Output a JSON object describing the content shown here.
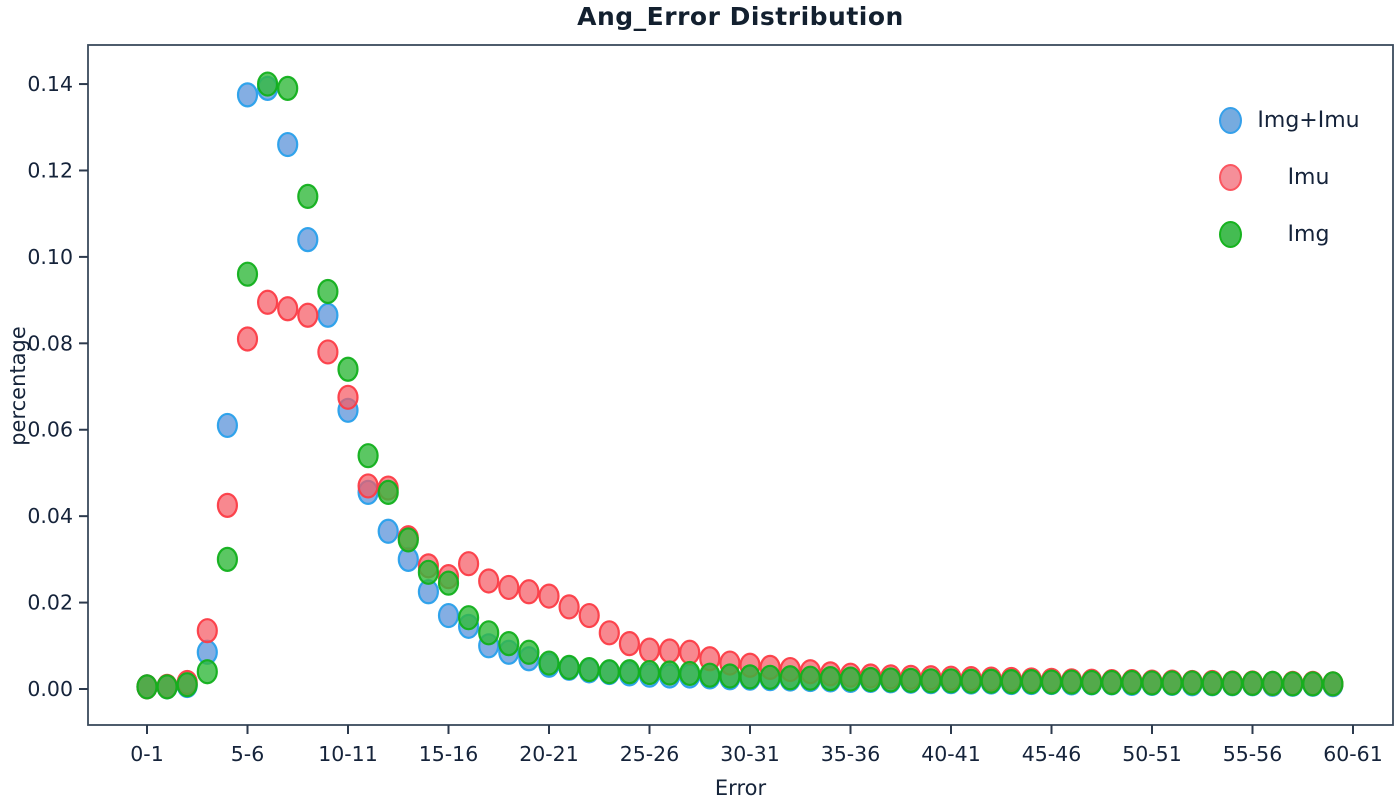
{
  "figure": {
    "title": "Ang_Error Distribution",
    "xlabel": "Error",
    "ylabel": "percentage"
  },
  "legend": {
    "position": "upper right",
    "items": [
      {
        "label": "Img+Imu",
        "fill": "#76abdf",
        "edge": "#35a0ea"
      },
      {
        "label": "Imu",
        "fill": "#f58f99",
        "edge": "#fb5660"
      },
      {
        "label": "Img",
        "fill": "#44bc52",
        "edge": "#16b31e"
      }
    ]
  },
  "chart_data": {
    "type": "scatter",
    "title": "Ang_Error Distribution",
    "xlabel": "Error",
    "ylabel": "percentage",
    "grid": false,
    "legend_position": "upper right",
    "ylim": [
      -0.0083,
      0.149
    ],
    "y_ticks": [
      0.0,
      0.02,
      0.04,
      0.06,
      0.08,
      0.1,
      0.12,
      0.14
    ],
    "x_tick_bins": [
      0,
      5,
      10,
      15,
      20,
      25,
      30,
      35,
      40,
      45,
      50,
      55,
      60
    ],
    "x_tick_labels": [
      "0-1",
      "5-6",
      "10-11",
      "15-16",
      "20-21",
      "25-26",
      "30-31",
      "35-36",
      "40-41",
      "45-46",
      "50-51",
      "55-56",
      "60-61"
    ],
    "categories": [
      "0-1",
      "1-2",
      "2-3",
      "3-4",
      "4-5",
      "5-6",
      "6-7",
      "7-8",
      "8-9",
      "9-10",
      "10-11",
      "11-12",
      "12-13",
      "13-14",
      "14-15",
      "15-16",
      "16-17",
      "17-18",
      "18-19",
      "19-20",
      "20-21",
      "21-22",
      "22-23",
      "23-24",
      "24-25",
      "25-26",
      "26-27",
      "27-28",
      "28-29",
      "29-30",
      "30-31",
      "31-32",
      "32-33",
      "33-34",
      "34-35",
      "35-36",
      "36-37",
      "37-38",
      "38-39",
      "39-40",
      "40-41",
      "41-42",
      "42-43",
      "43-44",
      "44-45",
      "45-46",
      "46-47",
      "47-48",
      "48-49",
      "49-50",
      "50-51",
      "51-52",
      "52-53",
      "53-54",
      "54-55",
      "55-56",
      "56-57",
      "57-58",
      "58-59",
      "59-60"
    ],
    "series": [
      {
        "name": "Img+Imu",
        "fill": "rgba(80,140,215,0.70)",
        "edge": "rgba(40,160,235,0.95)",
        "values": [
          0.0005,
          0.0005,
          0.0008,
          0.0085,
          0.061,
          0.1375,
          0.139,
          0.126,
          0.104,
          0.0865,
          0.0645,
          0.0455,
          0.0365,
          0.03,
          0.0225,
          0.017,
          0.0145,
          0.01,
          0.0085,
          0.007,
          0.0055,
          0.0048,
          0.0042,
          0.0038,
          0.0035,
          0.0032,
          0.003,
          0.003,
          0.0028,
          0.0026,
          0.0025,
          0.0024,
          0.0023,
          0.0022,
          0.0021,
          0.002,
          0.002,
          0.0019,
          0.0018,
          0.0017,
          0.0017,
          0.0016,
          0.0016,
          0.0015,
          0.0015,
          0.0015,
          0.0014,
          0.0014,
          0.0014,
          0.0013,
          0.0013,
          0.0013,
          0.0012,
          0.0012,
          0.0012,
          0.0012,
          0.0011,
          0.0011,
          0.0011,
          0.001
        ]
      },
      {
        "name": "Imu",
        "fill": "rgba(245,90,100,0.72)",
        "edge": "rgba(252,60,70,0.95)",
        "values": [
          0.0005,
          0.0006,
          0.0015,
          0.0135,
          0.0425,
          0.081,
          0.0895,
          0.088,
          0.0865,
          0.078,
          0.0675,
          0.047,
          0.0465,
          0.035,
          0.0285,
          0.026,
          0.029,
          0.025,
          0.0235,
          0.0225,
          0.0215,
          0.019,
          0.017,
          0.013,
          0.0105,
          0.009,
          0.0088,
          0.0085,
          0.007,
          0.006,
          0.0055,
          0.005,
          0.0045,
          0.004,
          0.0035,
          0.0032,
          0.003,
          0.0028,
          0.0027,
          0.0026,
          0.0025,
          0.0024,
          0.0023,
          0.0022,
          0.0021,
          0.002,
          0.0019,
          0.0018,
          0.0017,
          0.0017,
          0.0016,
          0.0016,
          0.0015,
          0.0015,
          0.0014,
          0.0014,
          0.0013,
          0.0013,
          0.0013,
          0.0012
        ]
      },
      {
        "name": "Img",
        "fill": "rgba(50,185,60,0.80)",
        "edge": "rgba(18,176,28,0.95)",
        "values": [
          0.0005,
          0.0005,
          0.001,
          0.004,
          0.03,
          0.096,
          0.14,
          0.139,
          0.114,
          0.092,
          0.074,
          0.054,
          0.0455,
          0.0345,
          0.027,
          0.0245,
          0.0165,
          0.013,
          0.0105,
          0.0085,
          0.006,
          0.005,
          0.0045,
          0.004,
          0.004,
          0.0038,
          0.0037,
          0.0036,
          0.0032,
          0.003,
          0.0028,
          0.0027,
          0.0026,
          0.0025,
          0.0024,
          0.0023,
          0.0022,
          0.0021,
          0.002,
          0.0019,
          0.0019,
          0.0018,
          0.0018,
          0.0017,
          0.0017,
          0.0016,
          0.0016,
          0.0015,
          0.0015,
          0.0015,
          0.0014,
          0.0014,
          0.0014,
          0.0013,
          0.0013,
          0.0013,
          0.0013,
          0.0012,
          0.0012,
          0.0012
        ]
      }
    ]
  }
}
